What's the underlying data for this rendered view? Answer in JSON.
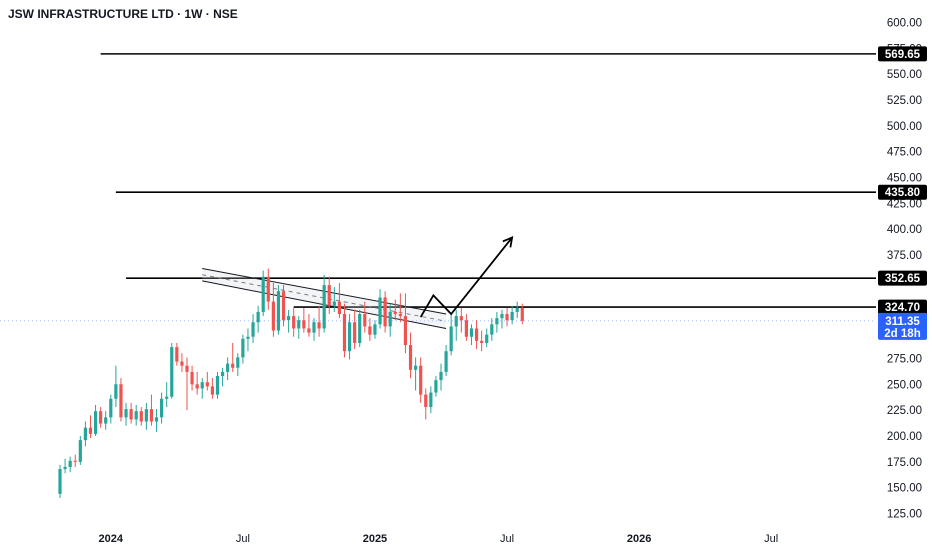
{
  "chart_data": {
    "type": "candlestick",
    "title": "JSW INFRASTRUCTURE LTD · 1W · NSE",
    "ylim": [
      120,
      610
    ],
    "yticks": [
      125,
      150,
      175,
      200,
      225,
      250,
      275,
      300,
      325,
      350,
      375,
      400,
      425,
      450,
      475,
      500,
      525,
      550,
      575,
      600
    ],
    "xticks": [
      {
        "label": "2024",
        "bold": true,
        "week": 10
      },
      {
        "label": "Jul",
        "bold": false,
        "week": 36
      },
      {
        "label": "2025",
        "bold": true,
        "week": 62
      },
      {
        "label": "Jul",
        "bold": false,
        "week": 88
      },
      {
        "label": "2026",
        "bold": true,
        "week": 114
      },
      {
        "label": "Jul",
        "bold": false,
        "week": 140
      }
    ],
    "candles": [
      [
        144,
        172,
        140,
        168
      ],
      [
        168,
        178,
        164,
        170
      ],
      [
        170,
        180,
        165,
        176
      ],
      [
        176,
        182,
        170,
        175
      ],
      [
        175,
        200,
        172,
        196
      ],
      [
        196,
        214,
        190,
        208
      ],
      [
        208,
        220,
        198,
        202
      ],
      [
        202,
        230,
        200,
        224
      ],
      [
        224,
        228,
        208,
        212
      ],
      [
        212,
        224,
        206,
        218
      ],
      [
        218,
        240,
        212,
        236
      ],
      [
        236,
        268,
        228,
        250
      ],
      [
        250,
        256,
        214,
        218
      ],
      [
        218,
        232,
        210,
        226
      ],
      [
        226,
        232,
        212,
        216
      ],
      [
        216,
        230,
        210,
        224
      ],
      [
        224,
        228,
        210,
        214
      ],
      [
        214,
        232,
        206,
        226
      ],
      [
        226,
        240,
        210,
        214
      ],
      [
        214,
        226,
        204,
        218
      ],
      [
        218,
        242,
        212,
        236
      ],
      [
        236,
        252,
        228,
        238
      ],
      [
        238,
        290,
        236,
        286
      ],
      [
        286,
        290,
        268,
        272
      ],
      [
        272,
        280,
        262,
        268
      ],
      [
        268,
        276,
        225,
        262
      ],
      [
        262,
        268,
        244,
        250
      ],
      [
        250,
        262,
        240,
        246
      ],
      [
        246,
        256,
        236,
        252
      ],
      [
        252,
        262,
        244,
        248
      ],
      [
        248,
        256,
        236,
        240
      ],
      [
        240,
        262,
        236,
        258
      ],
      [
        258,
        266,
        248,
        262
      ],
      [
        262,
        276,
        254,
        270
      ],
      [
        270,
        290,
        262,
        266
      ],
      [
        266,
        280,
        258,
        276
      ],
      [
        276,
        298,
        270,
        294
      ],
      [
        294,
        304,
        282,
        296
      ],
      [
        296,
        318,
        290,
        310
      ],
      [
        310,
        326,
        300,
        320
      ],
      [
        320,
        360,
        316,
        354
      ],
      [
        354,
        362,
        322,
        330
      ],
      [
        330,
        348,
        296,
        302
      ],
      [
        302,
        346,
        298,
        340
      ],
      [
        340,
        346,
        306,
        312
      ],
      [
        312,
        322,
        300,
        316
      ],
      [
        316,
        324,
        296,
        304
      ],
      [
        304,
        316,
        294,
        312
      ],
      [
        312,
        324,
        300,
        304
      ],
      [
        304,
        318,
        296,
        300
      ],
      [
        300,
        314,
        292,
        310
      ],
      [
        310,
        326,
        296,
        304
      ],
      [
        304,
        356,
        300,
        346
      ],
      [
        346,
        354,
        318,
        326
      ],
      [
        326,
        344,
        320,
        330
      ],
      [
        330,
        348,
        314,
        318
      ],
      [
        318,
        328,
        276,
        282
      ],
      [
        282,
        318,
        274,
        310
      ],
      [
        310,
        322,
        284,
        290
      ],
      [
        290,
        322,
        286,
        318
      ],
      [
        318,
        330,
        300,
        306
      ],
      [
        306,
        314,
        292,
        298
      ],
      [
        298,
        312,
        294,
        308
      ],
      [
        308,
        342,
        304,
        334
      ],
      [
        334,
        340,
        300,
        306
      ],
      [
        306,
        328,
        296,
        320
      ],
      [
        320,
        332,
        312,
        318
      ],
      [
        318,
        338,
        310,
        316
      ],
      [
        316,
        338,
        280,
        288
      ],
      [
        288,
        300,
        256,
        264
      ],
      [
        264,
        276,
        244,
        268
      ],
      [
        268,
        276,
        232,
        240
      ],
      [
        240,
        246,
        216,
        228
      ],
      [
        228,
        248,
        222,
        242
      ],
      [
        242,
        258,
        238,
        254
      ],
      [
        254,
        270,
        244,
        262
      ],
      [
        262,
        288,
        258,
        282
      ],
      [
        282,
        318,
        278,
        306
      ],
      [
        306,
        322,
        292,
        316
      ],
      [
        316,
        324,
        300,
        312
      ],
      [
        312,
        318,
        292,
        296
      ],
      [
        296,
        308,
        288,
        304
      ],
      [
        304,
        312,
        284,
        292
      ],
      [
        292,
        302,
        282,
        290
      ],
      [
        290,
        304,
        286,
        298
      ],
      [
        298,
        314,
        292,
        308
      ],
      [
        308,
        320,
        300,
        314
      ],
      [
        314,
        322,
        304,
        318
      ],
      [
        318,
        324,
        306,
        312
      ],
      [
        312,
        326,
        308,
        320
      ],
      [
        320,
        330,
        314,
        324
      ],
      [
        324,
        328,
        308,
        311.35
      ]
    ],
    "horizontal_levels": [
      {
        "value": 569.65,
        "label": "569.65",
        "start_week": 8
      },
      {
        "value": 435.8,
        "label": "435.80",
        "start_week": 11
      },
      {
        "value": 352.65,
        "label": "352.65",
        "start_week": 13
      },
      {
        "value": 324.7,
        "label": "324.70",
        "start_week": 46
      }
    ],
    "trend_channel": {
      "upper": [
        [
          28,
          362
        ],
        [
          76,
          318
        ]
      ],
      "lower": [
        [
          28,
          350
        ],
        [
          76,
          304
        ]
      ],
      "start_week": 28,
      "end_week": 76
    },
    "projection_path": [
      [
        71,
        315
      ],
      [
        73.5,
        336
      ],
      [
        77,
        318
      ],
      [
        89,
        392
      ]
    ],
    "current_price": {
      "value": 311.35,
      "label": "311.35",
      "countdown": "2d 18h"
    },
    "colors": {
      "up": "#26a69a",
      "down": "#ef5350",
      "price_tag": "#2962ff",
      "level": "#000000",
      "axis_text": "#131722"
    }
  }
}
